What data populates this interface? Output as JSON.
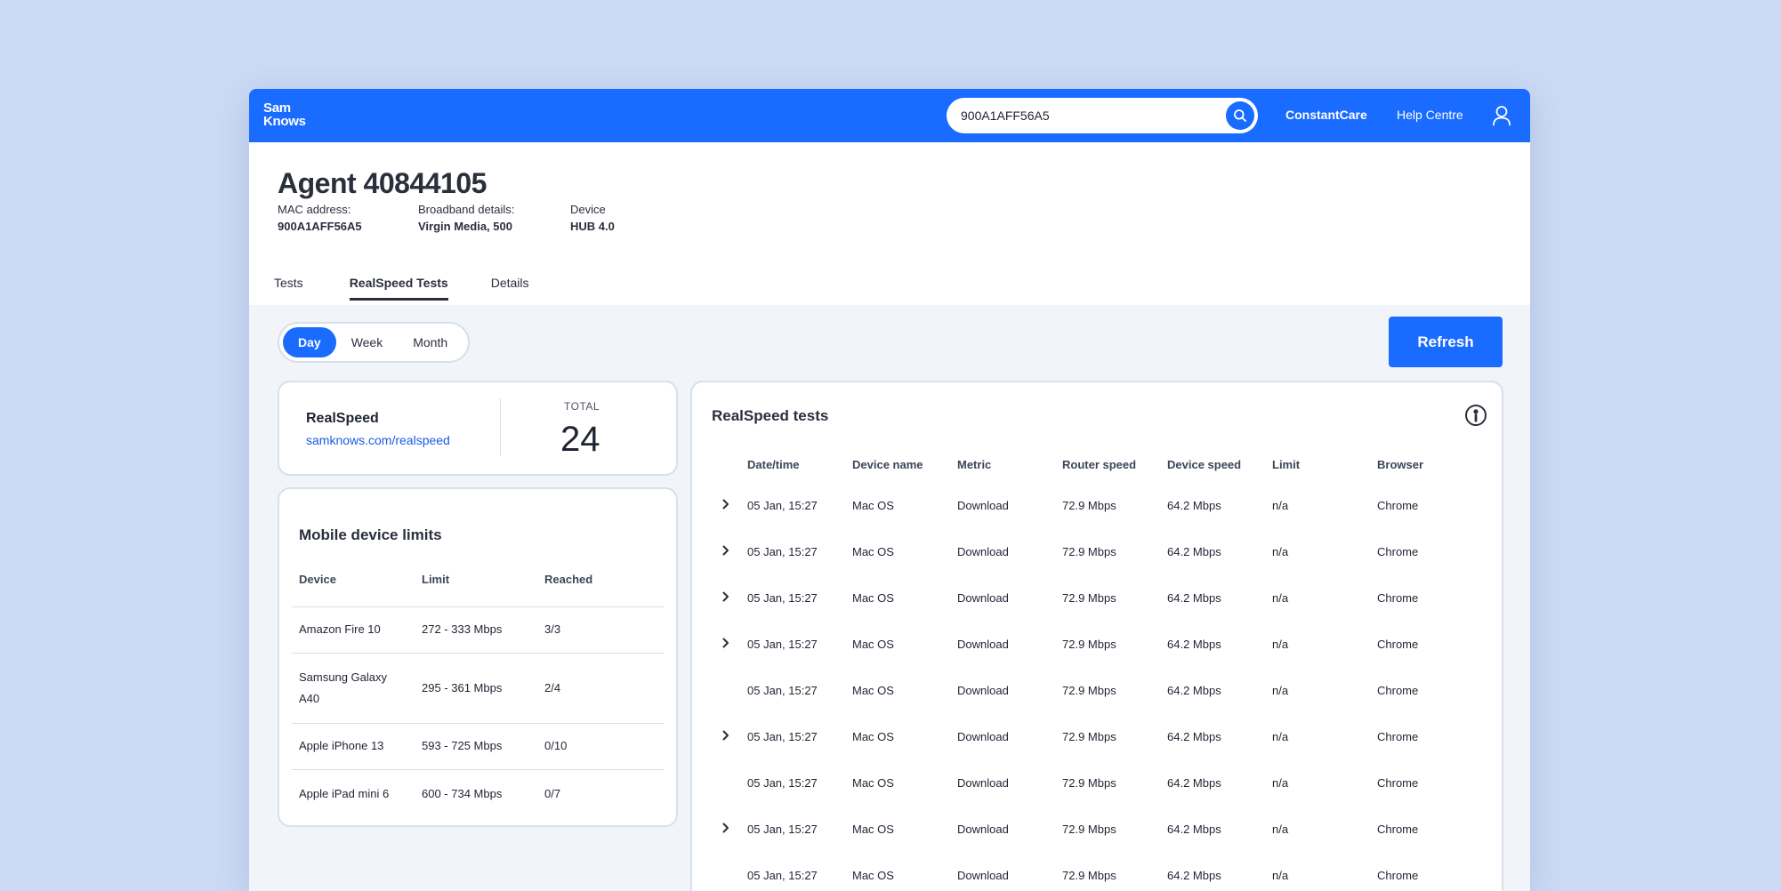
{
  "brand": {
    "line1": "Sam",
    "line2": "Knows"
  },
  "search": {
    "value": "900A1AFF56A5"
  },
  "nav": {
    "constant_care": "ConstantCare",
    "help_centre": "Help Centre"
  },
  "agent": {
    "title": "Agent 40844105",
    "mac_label": "MAC address:",
    "mac_value": "900A1AFF56A5",
    "broadband_label": "Broadband details:",
    "broadband_value": "Virgin Media, 500",
    "device_label": "Device",
    "device_value": "HUB 4.0"
  },
  "tabs": [
    {
      "label": "Tests",
      "active": false
    },
    {
      "label": "RealSpeed Tests",
      "active": true
    },
    {
      "label": "Details",
      "active": false
    }
  ],
  "periods": [
    {
      "label": "Day",
      "active": true
    },
    {
      "label": "Week",
      "active": false
    },
    {
      "label": "Month",
      "active": false
    }
  ],
  "refresh_label": "Refresh",
  "realspeed_card": {
    "name": "RealSpeed",
    "link": "samknows.com/realspeed",
    "total_label": "TOTAL",
    "total_value": "24"
  },
  "mobile_limits": {
    "title": "Mobile device limits",
    "headers": [
      "Device",
      "Limit",
      "Reached"
    ],
    "rows": [
      [
        "Amazon Fire 10",
        "272 - 333 Mbps",
        "3/3"
      ],
      [
        "Samsung Galaxy A40",
        "295 - 361 Mbps",
        "2/4"
      ],
      [
        "Apple iPhone 13",
        "593 - 725 Mbps",
        "0/10"
      ],
      [
        "Apple iPad mini 6",
        "600 - 734 Mbps",
        "0/7"
      ]
    ]
  },
  "tests": {
    "title": "RealSpeed tests",
    "headers": [
      "Date/time",
      "Device name",
      "Metric",
      "Router speed",
      "Device speed",
      "Limit",
      "Browser"
    ],
    "rows": [
      {
        "expandable": true,
        "cells": [
          "05 Jan, 15:27",
          "Mac OS",
          "Download",
          "72.9 Mbps",
          "64.2 Mbps",
          "n/a",
          "Chrome"
        ]
      },
      {
        "expandable": true,
        "cells": [
          "05 Jan, 15:27",
          "Mac OS",
          "Download",
          "72.9 Mbps",
          "64.2 Mbps",
          "n/a",
          "Chrome"
        ]
      },
      {
        "expandable": true,
        "cells": [
          "05 Jan, 15:27",
          "Mac OS",
          "Download",
          "72.9 Mbps",
          "64.2 Mbps",
          "n/a",
          "Chrome"
        ]
      },
      {
        "expandable": true,
        "cells": [
          "05 Jan, 15:27",
          "Mac OS",
          "Download",
          "72.9 Mbps",
          "64.2 Mbps",
          "n/a",
          "Chrome"
        ]
      },
      {
        "expandable": false,
        "cells": [
          "05 Jan, 15:27",
          "Mac OS",
          "Download",
          "72.9 Mbps",
          "64.2 Mbps",
          "n/a",
          "Chrome"
        ]
      },
      {
        "expandable": true,
        "cells": [
          "05 Jan, 15:27",
          "Mac OS",
          "Download",
          "72.9 Mbps",
          "64.2 Mbps",
          "n/a",
          "Chrome"
        ]
      },
      {
        "expandable": false,
        "cells": [
          "05 Jan, 15:27",
          "Mac OS",
          "Download",
          "72.9 Mbps",
          "64.2 Mbps",
          "n/a",
          "Chrome"
        ]
      },
      {
        "expandable": true,
        "cells": [
          "05 Jan, 15:27",
          "Mac OS",
          "Download",
          "72.9 Mbps",
          "64.2 Mbps",
          "n/a",
          "Chrome"
        ]
      },
      {
        "expandable": false,
        "cells": [
          "05 Jan, 15:27",
          "Mac OS",
          "Download",
          "72.9 Mbps",
          "64.2 Mbps",
          "n/a",
          "Chrome"
        ]
      }
    ]
  },
  "icons": {
    "search": "search-icon",
    "user": "user-icon",
    "info": "info-icon",
    "chevron": "chevron-right-icon"
  },
  "colors": {
    "accent": "#1a6bff",
    "backdrop": "#ccdaf5",
    "link": "#1a5ce0"
  }
}
